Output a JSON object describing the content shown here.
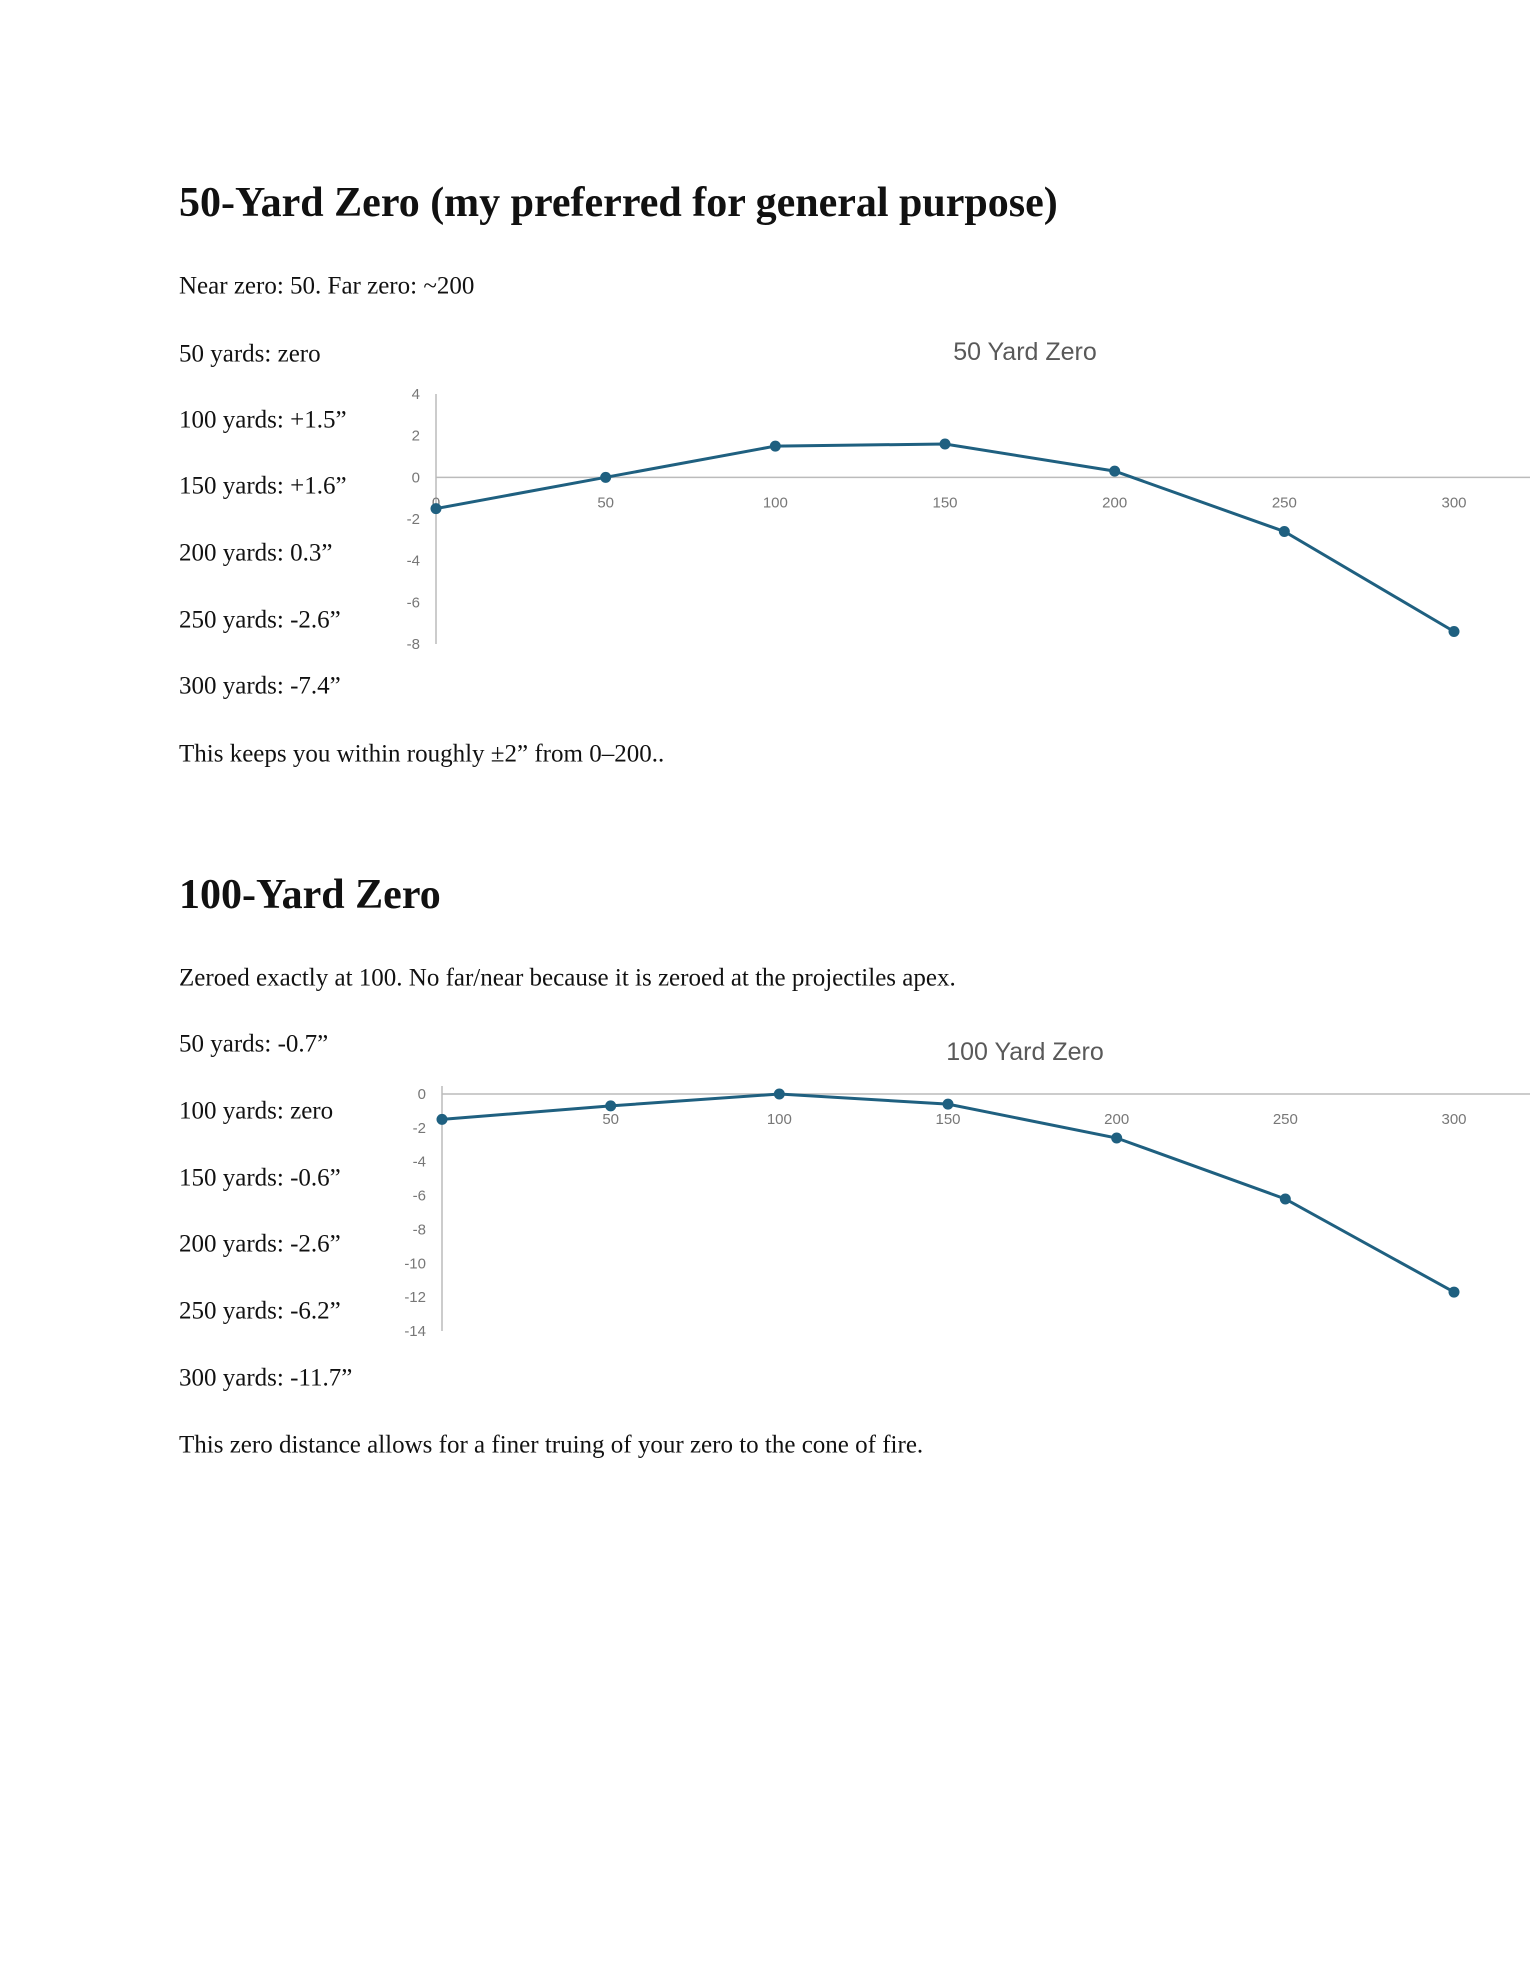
{
  "sections": [
    {
      "heading": "50-Yard Zero (my preferred for general purpose)",
      "intro": "Near zero: 50.  Far zero: ~200",
      "lines": [
        "50 yards: zero",
        "100 yards: +1.5”",
        "150 yards: +1.6”",
        "200 yards: 0.3”",
        "250 yards: -2.6”",
        "300 yards: -7.4”"
      ],
      "outro": "This keeps you within roughly ±2” from 0–200.."
    },
    {
      "heading": "100-Yard Zero",
      "intro": "Zeroed exactly at 100. No far/near because it is zeroed at the projectiles apex.",
      "lines": [
        "50 yards: -0.7”",
        "100 yards: zero",
        "150 yards: -0.6”",
        "200 yards: -2.6”",
        "250 yards: -6.2”",
        "300 yards: -11.7”"
      ],
      "outro": "This zero distance allows for a finer truing of your zero to the cone of fire."
    }
  ],
  "chart_data": [
    {
      "type": "line",
      "title": "50 Yard Zero",
      "x": [
        0,
        50,
        100,
        150,
        200,
        250,
        300
      ],
      "values": [
        -1.5,
        0,
        1.5,
        1.6,
        0.3,
        -2.6,
        -7.4
      ],
      "xticks": [
        "0",
        "50",
        "100",
        "150",
        "200",
        "250",
        "300"
      ],
      "yticks": [
        "4",
        "2",
        "0",
        "-2",
        "-4",
        "-6",
        "-8"
      ],
      "ylim": [
        -8,
        4
      ],
      "xlim": [
        0,
        300
      ],
      "grid": false,
      "color": "#1f6080"
    },
    {
      "type": "line",
      "title": "100 Yard Zero",
      "x": [
        0,
        50,
        100,
        150,
        200,
        250,
        300
      ],
      "values": [
        -1.5,
        -0.7,
        0,
        -0.6,
        -2.6,
        -6.2,
        -11.7
      ],
      "xticks": [
        "0",
        "50",
        "100",
        "150",
        "200",
        "250",
        "300"
      ],
      "yticks": [
        "0",
        "-2",
        "-4",
        "-6",
        "-8",
        "-10",
        "-12",
        "-14"
      ],
      "ylim": [
        -14,
        0
      ],
      "xlim": [
        0,
        300
      ],
      "grid": false,
      "color": "#1f6080"
    }
  ]
}
